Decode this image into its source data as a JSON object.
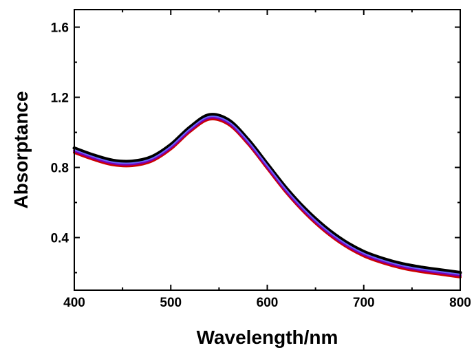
{
  "chart_data": {
    "type": "line",
    "title": "",
    "xlabel": "Wavelength/nm",
    "ylabel": "Absorptance",
    "xlim": [
      400,
      800
    ],
    "ylim": [
      0.1,
      1.7
    ],
    "x_ticks": [
      400,
      500,
      600,
      700,
      800
    ],
    "x_tick_labels": [
      "400",
      "500",
      "600",
      "700",
      "800"
    ],
    "y_ticks": [
      0.4,
      0.8,
      1.2,
      1.6
    ],
    "y_tick_labels": [
      "0.4",
      "0.8",
      "1.2",
      "1.6"
    ],
    "grid": false,
    "legend": "none",
    "series": [
      {
        "color": "#000000",
        "x": [
          400,
          420,
          440,
          460,
          480,
          500,
          520,
          540,
          560,
          580,
          600,
          620,
          640,
          660,
          680,
          700,
          720,
          740,
          760,
          780,
          800
        ],
        "values": [
          0.91,
          0.87,
          0.84,
          0.835,
          0.86,
          0.93,
          1.03,
          1.1,
          1.07,
          0.96,
          0.82,
          0.68,
          0.56,
          0.46,
          0.38,
          0.32,
          0.28,
          0.25,
          0.23,
          0.215,
          0.2
        ]
      },
      {
        "color": "#cc0000",
        "x": [
          400,
          420,
          440,
          460,
          480,
          500,
          520,
          540,
          560,
          580,
          600,
          620,
          640,
          660,
          680,
          700,
          720,
          740,
          760,
          780,
          800
        ],
        "values": [
          0.885,
          0.845,
          0.815,
          0.81,
          0.835,
          0.905,
          1.005,
          1.075,
          1.045,
          0.935,
          0.795,
          0.655,
          0.535,
          0.435,
          0.355,
          0.295,
          0.255,
          0.225,
          0.205,
          0.19,
          0.175
        ]
      },
      {
        "color": "#7a00b5",
        "x": [
          400,
          420,
          440,
          460,
          480,
          500,
          520,
          540,
          560,
          580,
          600,
          620,
          640,
          660,
          680,
          700,
          720,
          740,
          760,
          780,
          800
        ],
        "values": [
          0.895,
          0.855,
          0.825,
          0.82,
          0.845,
          0.915,
          1.015,
          1.085,
          1.055,
          0.945,
          0.805,
          0.665,
          0.545,
          0.445,
          0.365,
          0.305,
          0.265,
          0.235,
          0.215,
          0.2,
          0.185
        ]
      },
      {
        "color": "#6666ff",
        "x": [
          400,
          420,
          440,
          460,
          480,
          500,
          520,
          540,
          560,
          580,
          600,
          620,
          640,
          660,
          680,
          700,
          720,
          740,
          760,
          780,
          800
        ],
        "values": [
          0.9,
          0.86,
          0.83,
          0.825,
          0.85,
          0.92,
          1.02,
          1.09,
          1.06,
          0.95,
          0.81,
          0.67,
          0.55,
          0.45,
          0.37,
          0.31,
          0.27,
          0.24,
          0.22,
          0.205,
          0.19
        ]
      }
    ]
  }
}
